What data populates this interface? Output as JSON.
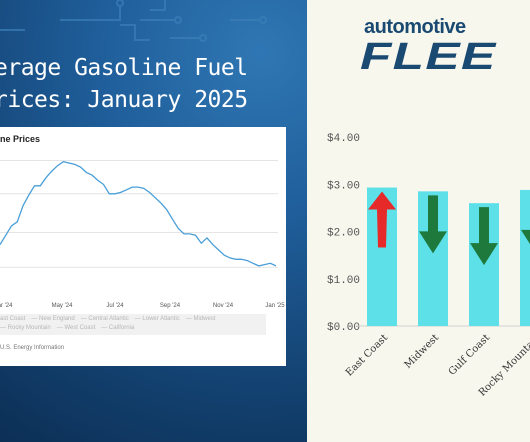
{
  "left_panel": {
    "headline_line1": "erage Gasoline Fuel",
    "headline_line2": "rices: January 2025",
    "inset_title": "ne Prices",
    "inset_legend_row1": [
      "ast Coast",
      "New England",
      "Central Atlantic",
      "Lower Atlantic",
      "Midwest"
    ],
    "inset_legend_row2": [
      "Rocky Mountain",
      "West Coast",
      "California"
    ],
    "inset_source": "U.S. Energy Information"
  },
  "right_panel": {
    "brand_top": "automotive",
    "brand_bottom": "FLEE"
  },
  "colors": {
    "bar": "#5ee0e8",
    "arrow_up": "#e62a2a",
    "arrow_down": "#1e7a3c",
    "line": "#4a9fd8",
    "header_bg": "#1f5e9a"
  },
  "chart_data": [
    {
      "type": "line",
      "title": "ne Prices",
      "x_tick_labels": [
        "ar '24",
        "May '24",
        "Jul '24",
        "Sep '24",
        "Nov '24",
        "Jan '25"
      ],
      "series": [
        {
          "values": [
            3.17,
            3.24,
            3.31,
            3.34,
            3.46,
            3.54,
            3.61,
            3.61,
            3.67,
            3.72,
            3.76,
            3.79,
            3.78,
            3.77,
            3.75,
            3.71,
            3.69,
            3.65,
            3.62,
            3.55,
            3.55,
            3.56,
            3.58,
            3.6,
            3.6,
            3.59,
            3.56,
            3.52,
            3.48,
            3.43,
            3.36,
            3.29,
            3.25,
            3.25,
            3.24,
            3.18,
            3.22,
            3.17,
            3.13,
            3.09,
            3.07,
            3.06,
            3.06,
            3.05,
            3.03,
            3.01,
            3.02,
            3.03,
            3.01
          ]
        }
      ]
    },
    {
      "type": "bar",
      "categories": [
        "East Coast",
        "Midwest",
        "Gulf Coast",
        "Rocky Mountain"
      ],
      "values": [
        2.93,
        2.85,
        2.6,
        2.88
      ],
      "trend": [
        "up",
        "down",
        "down",
        "down"
      ],
      "y_tick_labels": [
        "$0.00",
        "$1.00",
        "$2.00",
        "$3.00",
        "$4.00"
      ],
      "ylim": [
        0,
        4
      ]
    }
  ]
}
